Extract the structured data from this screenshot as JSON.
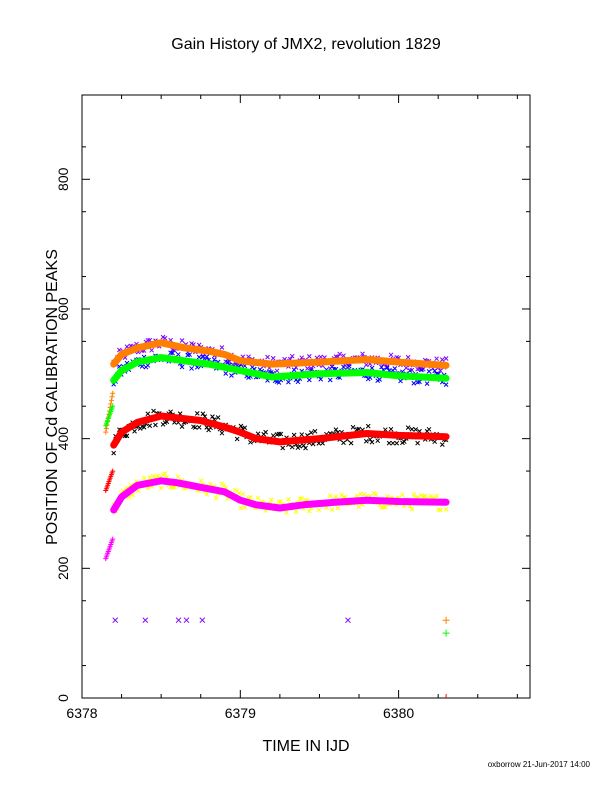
{
  "page": {
    "title": "Gain History of JMX2, revolution 1829",
    "credit": "oxborrow 21-Jun-2017 14:00"
  },
  "chart_data": {
    "type": "scatter",
    "title": "Gain History of JMX2, revolution 1829",
    "xlabel": "TIME IN IJD",
    "ylabel": "POSITION OF Cd CALIBRATION PEAKS",
    "xlim": [
      6378.0,
      6380.83
    ],
    "ylim": [
      0,
      930
    ],
    "x_ticks": [
      6378,
      6379,
      6380
    ],
    "y_ticks": [
      0,
      200,
      400,
      600,
      800
    ],
    "grid": false,
    "legend": "none",
    "colors": {
      "orange": "#ff8000",
      "green": "#00ff00",
      "red": "#ff0000",
      "magenta": "#ff00ff",
      "purple": "#8000ff",
      "blue": "#0000ff",
      "black": "#000000",
      "yellow": "#ffff00"
    },
    "fit_lines": [
      {
        "color": "orange",
        "points": [
          [
            6378.2,
            515
          ],
          [
            6378.25,
            530
          ],
          [
            6378.35,
            540
          ],
          [
            6378.5,
            548
          ],
          [
            6378.65,
            540
          ],
          [
            6378.8,
            535
          ],
          [
            6378.9,
            530
          ],
          [
            6379.0,
            520
          ],
          [
            6379.2,
            515
          ],
          [
            6379.5,
            518
          ],
          [
            6379.8,
            522
          ],
          [
            6380.0,
            518
          ],
          [
            6380.3,
            513
          ]
        ]
      },
      {
        "color": "green",
        "points": [
          [
            6378.2,
            490
          ],
          [
            6378.25,
            505
          ],
          [
            6378.35,
            518
          ],
          [
            6378.5,
            525
          ],
          [
            6378.65,
            520
          ],
          [
            6378.8,
            515
          ],
          [
            6378.9,
            510
          ],
          [
            6379.0,
            505
          ],
          [
            6379.2,
            495
          ],
          [
            6379.5,
            500
          ],
          [
            6379.8,
            502
          ],
          [
            6380.0,
            497
          ],
          [
            6380.3,
            493
          ]
        ]
      },
      {
        "color": "red",
        "points": [
          [
            6378.2,
            390
          ],
          [
            6378.25,
            410
          ],
          [
            6378.35,
            425
          ],
          [
            6378.5,
            435
          ],
          [
            6378.6,
            432
          ],
          [
            6378.75,
            428
          ],
          [
            6378.9,
            418
          ],
          [
            6379.0,
            410
          ],
          [
            6379.1,
            400
          ],
          [
            6379.25,
            395
          ],
          [
            6379.5,
            400
          ],
          [
            6379.8,
            408
          ],
          [
            6380.0,
            405
          ],
          [
            6380.3,
            403
          ]
        ]
      },
      {
        "color": "magenta",
        "points": [
          [
            6378.2,
            290
          ],
          [
            6378.25,
            310
          ],
          [
            6378.35,
            328
          ],
          [
            6378.5,
            335
          ],
          [
            6378.6,
            332
          ],
          [
            6378.75,
            325
          ],
          [
            6378.9,
            318
          ],
          [
            6379.0,
            305
          ],
          [
            6379.1,
            298
          ],
          [
            6379.25,
            293
          ],
          [
            6379.4,
            298
          ],
          [
            6379.6,
            302
          ],
          [
            6379.8,
            305
          ],
          [
            6380.0,
            303
          ],
          [
            6380.3,
            302
          ]
        ]
      }
    ],
    "isolated_points": [
      {
        "x": 6378.21,
        "y": 120,
        "color": "purple",
        "marker": "x"
      },
      {
        "x": 6378.4,
        "y": 120,
        "color": "purple",
        "marker": "x"
      },
      {
        "x": 6378.61,
        "y": 120,
        "color": "purple",
        "marker": "x"
      },
      {
        "x": 6378.66,
        "y": 120,
        "color": "purple",
        "marker": "x"
      },
      {
        "x": 6378.76,
        "y": 120,
        "color": "purple",
        "marker": "x"
      },
      {
        "x": 6379.68,
        "y": 120,
        "color": "purple",
        "marker": "x"
      },
      {
        "x": 6380.3,
        "y": 120,
        "color": "orange",
        "marker": "+"
      },
      {
        "x": 6380.3,
        "y": 100,
        "color": "green",
        "marker": "+"
      }
    ]
  }
}
